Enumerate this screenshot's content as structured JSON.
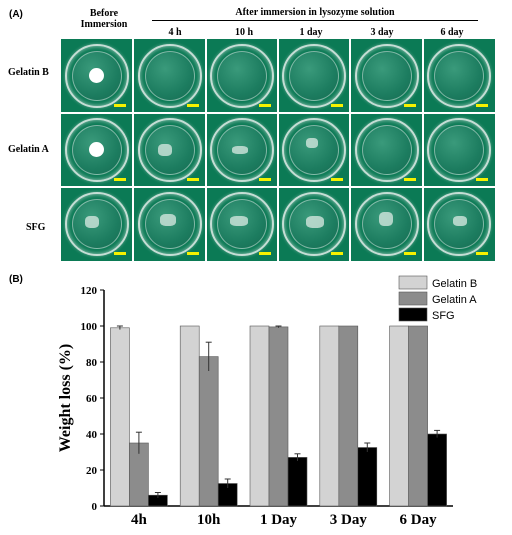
{
  "figure": {
    "panel_a_label": "(A)",
    "panel_b_label": "(B)",
    "header_before": [
      "Before",
      "Immersion"
    ],
    "header_after": "After immersion in lysozyme solution",
    "time_columns": [
      "4 h",
      "10 h",
      "1 day",
      "3 day",
      "6 day"
    ],
    "row_labels": [
      "Gelatin B",
      "Gelatin A",
      "SFG"
    ]
  },
  "colors": {
    "gelatin_b": "#d3d3d3",
    "gelatin_a": "#8c8c8c",
    "sfg": "#000000",
    "photo_background": "#0b7a55",
    "scale_bar": "#f6f100"
  },
  "chart_data": {
    "type": "bar",
    "categories": [
      "4h",
      "10h",
      "1 Day",
      "3 Day",
      "6 Day"
    ],
    "ylabel": "Weight loss (%)",
    "xlabel": "",
    "ylim": [
      0,
      120
    ],
    "yticks": [
      "0",
      "20",
      "40",
      "60",
      "80",
      "100",
      "120"
    ],
    "grid": false,
    "legend_position": "top-right",
    "series": [
      {
        "name": "Gelatin B",
        "values": [
          99,
          100,
          100,
          100,
          100
        ],
        "errors": [
          1,
          0,
          0,
          0,
          0
        ]
      },
      {
        "name": "Gelatin A",
        "values": [
          35,
          83,
          99.5,
          100,
          100
        ],
        "errors": [
          6,
          8,
          0.5,
          0,
          0
        ]
      },
      {
        "name": "SFG",
        "values": [
          6,
          12.5,
          27,
          32.5,
          40
        ],
        "errors": [
          1.5,
          2.5,
          2,
          2.5,
          2
        ]
      }
    ]
  }
}
